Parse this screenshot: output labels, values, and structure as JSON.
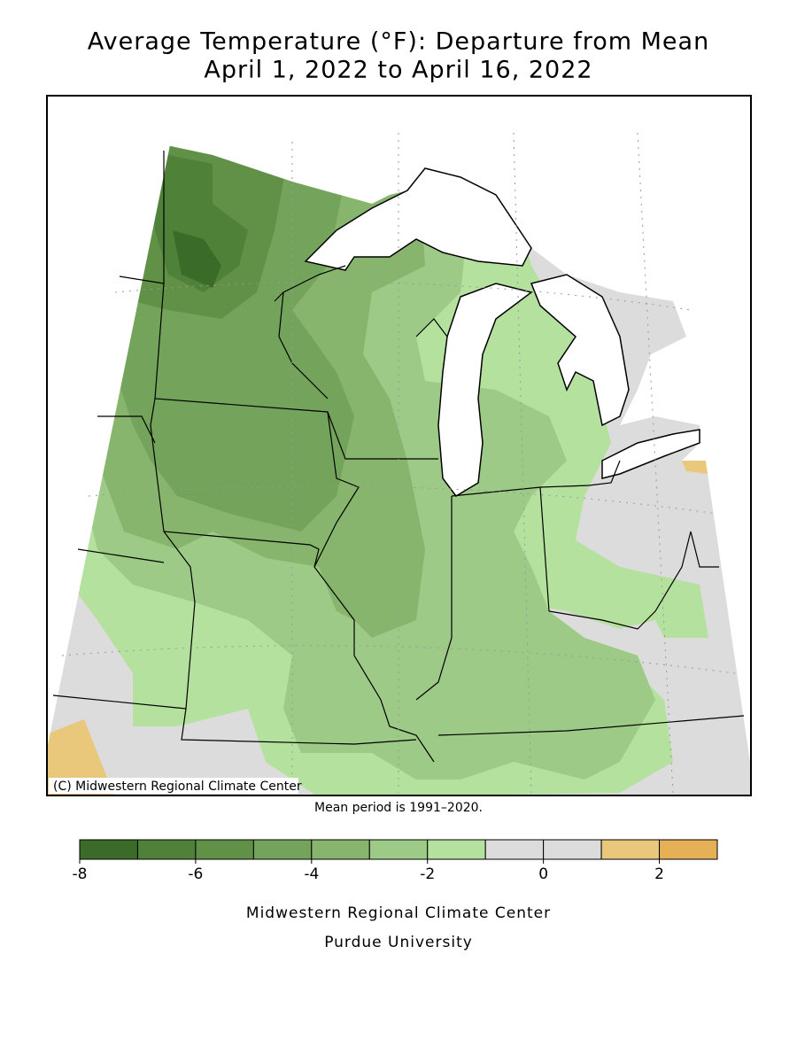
{
  "header": {
    "title": "Average Temperature (°F): Departure from Mean",
    "subtitle": "April 1, 2022 to April 16, 2022"
  },
  "map": {
    "credit": "(C) Midwestern Regional Climate Center"
  },
  "note": "Mean period is 1991–2020.",
  "legend": {
    "bins": [
      -8,
      -7,
      -6,
      -5,
      -4,
      -3,
      -2,
      -1,
      0,
      1,
      2,
      3
    ],
    "colors": [
      "#3b6b29",
      "#4f8139",
      "#609147",
      "#74a45b",
      "#87b56d",
      "#9dca87",
      "#b4e19d",
      "#dcdcdc",
      "#dcdcdc",
      "#e9c87b",
      "#e6b056"
    ],
    "ticks": [
      -8,
      -6,
      -4,
      -2,
      0,
      2
    ]
  },
  "footer": {
    "line1": "Midwestern Regional Climate Center",
    "line2": "Purdue University"
  }
}
